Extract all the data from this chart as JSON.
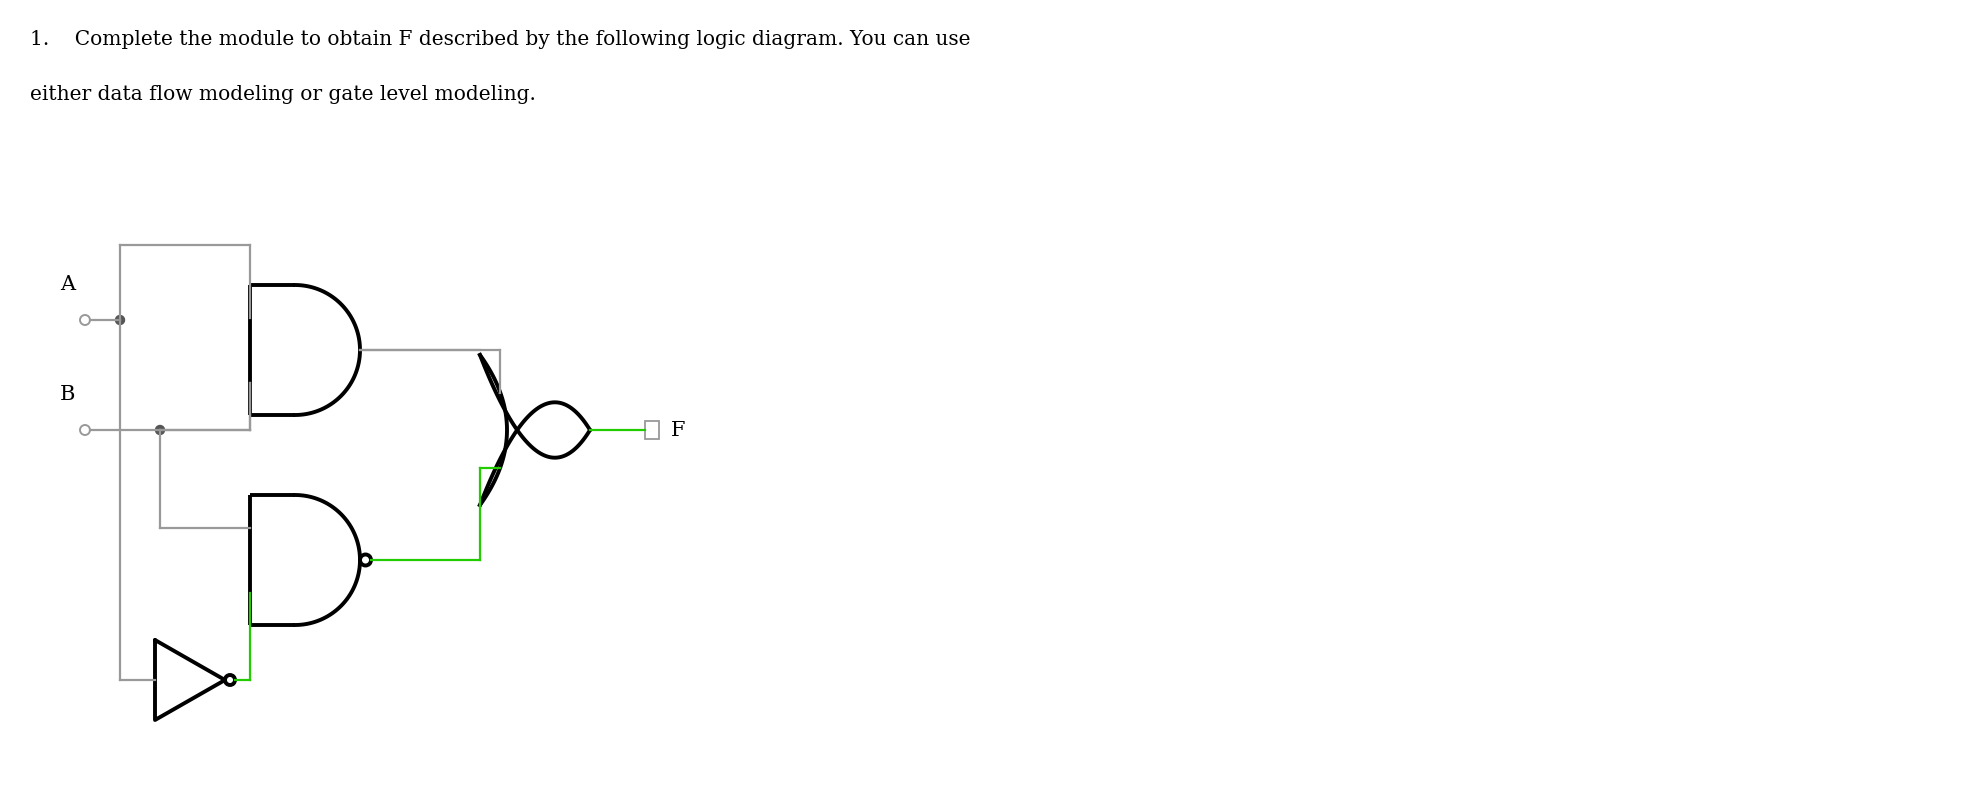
{
  "title_line1": "1.    Complete the module to obtain F described by the following logic diagram. You can use",
  "title_line2": "either data flow modeling or gate level modeling.",
  "title_fontsize": 14.5,
  "bg_color": "#ffffff",
  "wire_color_gray": "#999999",
  "wire_color_green": "#22cc00",
  "gate_color": "#000000",
  "gate_lw": 2.8,
  "wire_lw": 1.6,
  "label_A": "A",
  "label_B": "B",
  "label_F": "F",
  "label_fontsize": 15,
  "dot_r": 4.5,
  "bubble_r": 5.0,
  "out_bubble_r": 5.5,
  "fig_w": 19.68,
  "fig_h": 7.98,
  "dpi": 100
}
